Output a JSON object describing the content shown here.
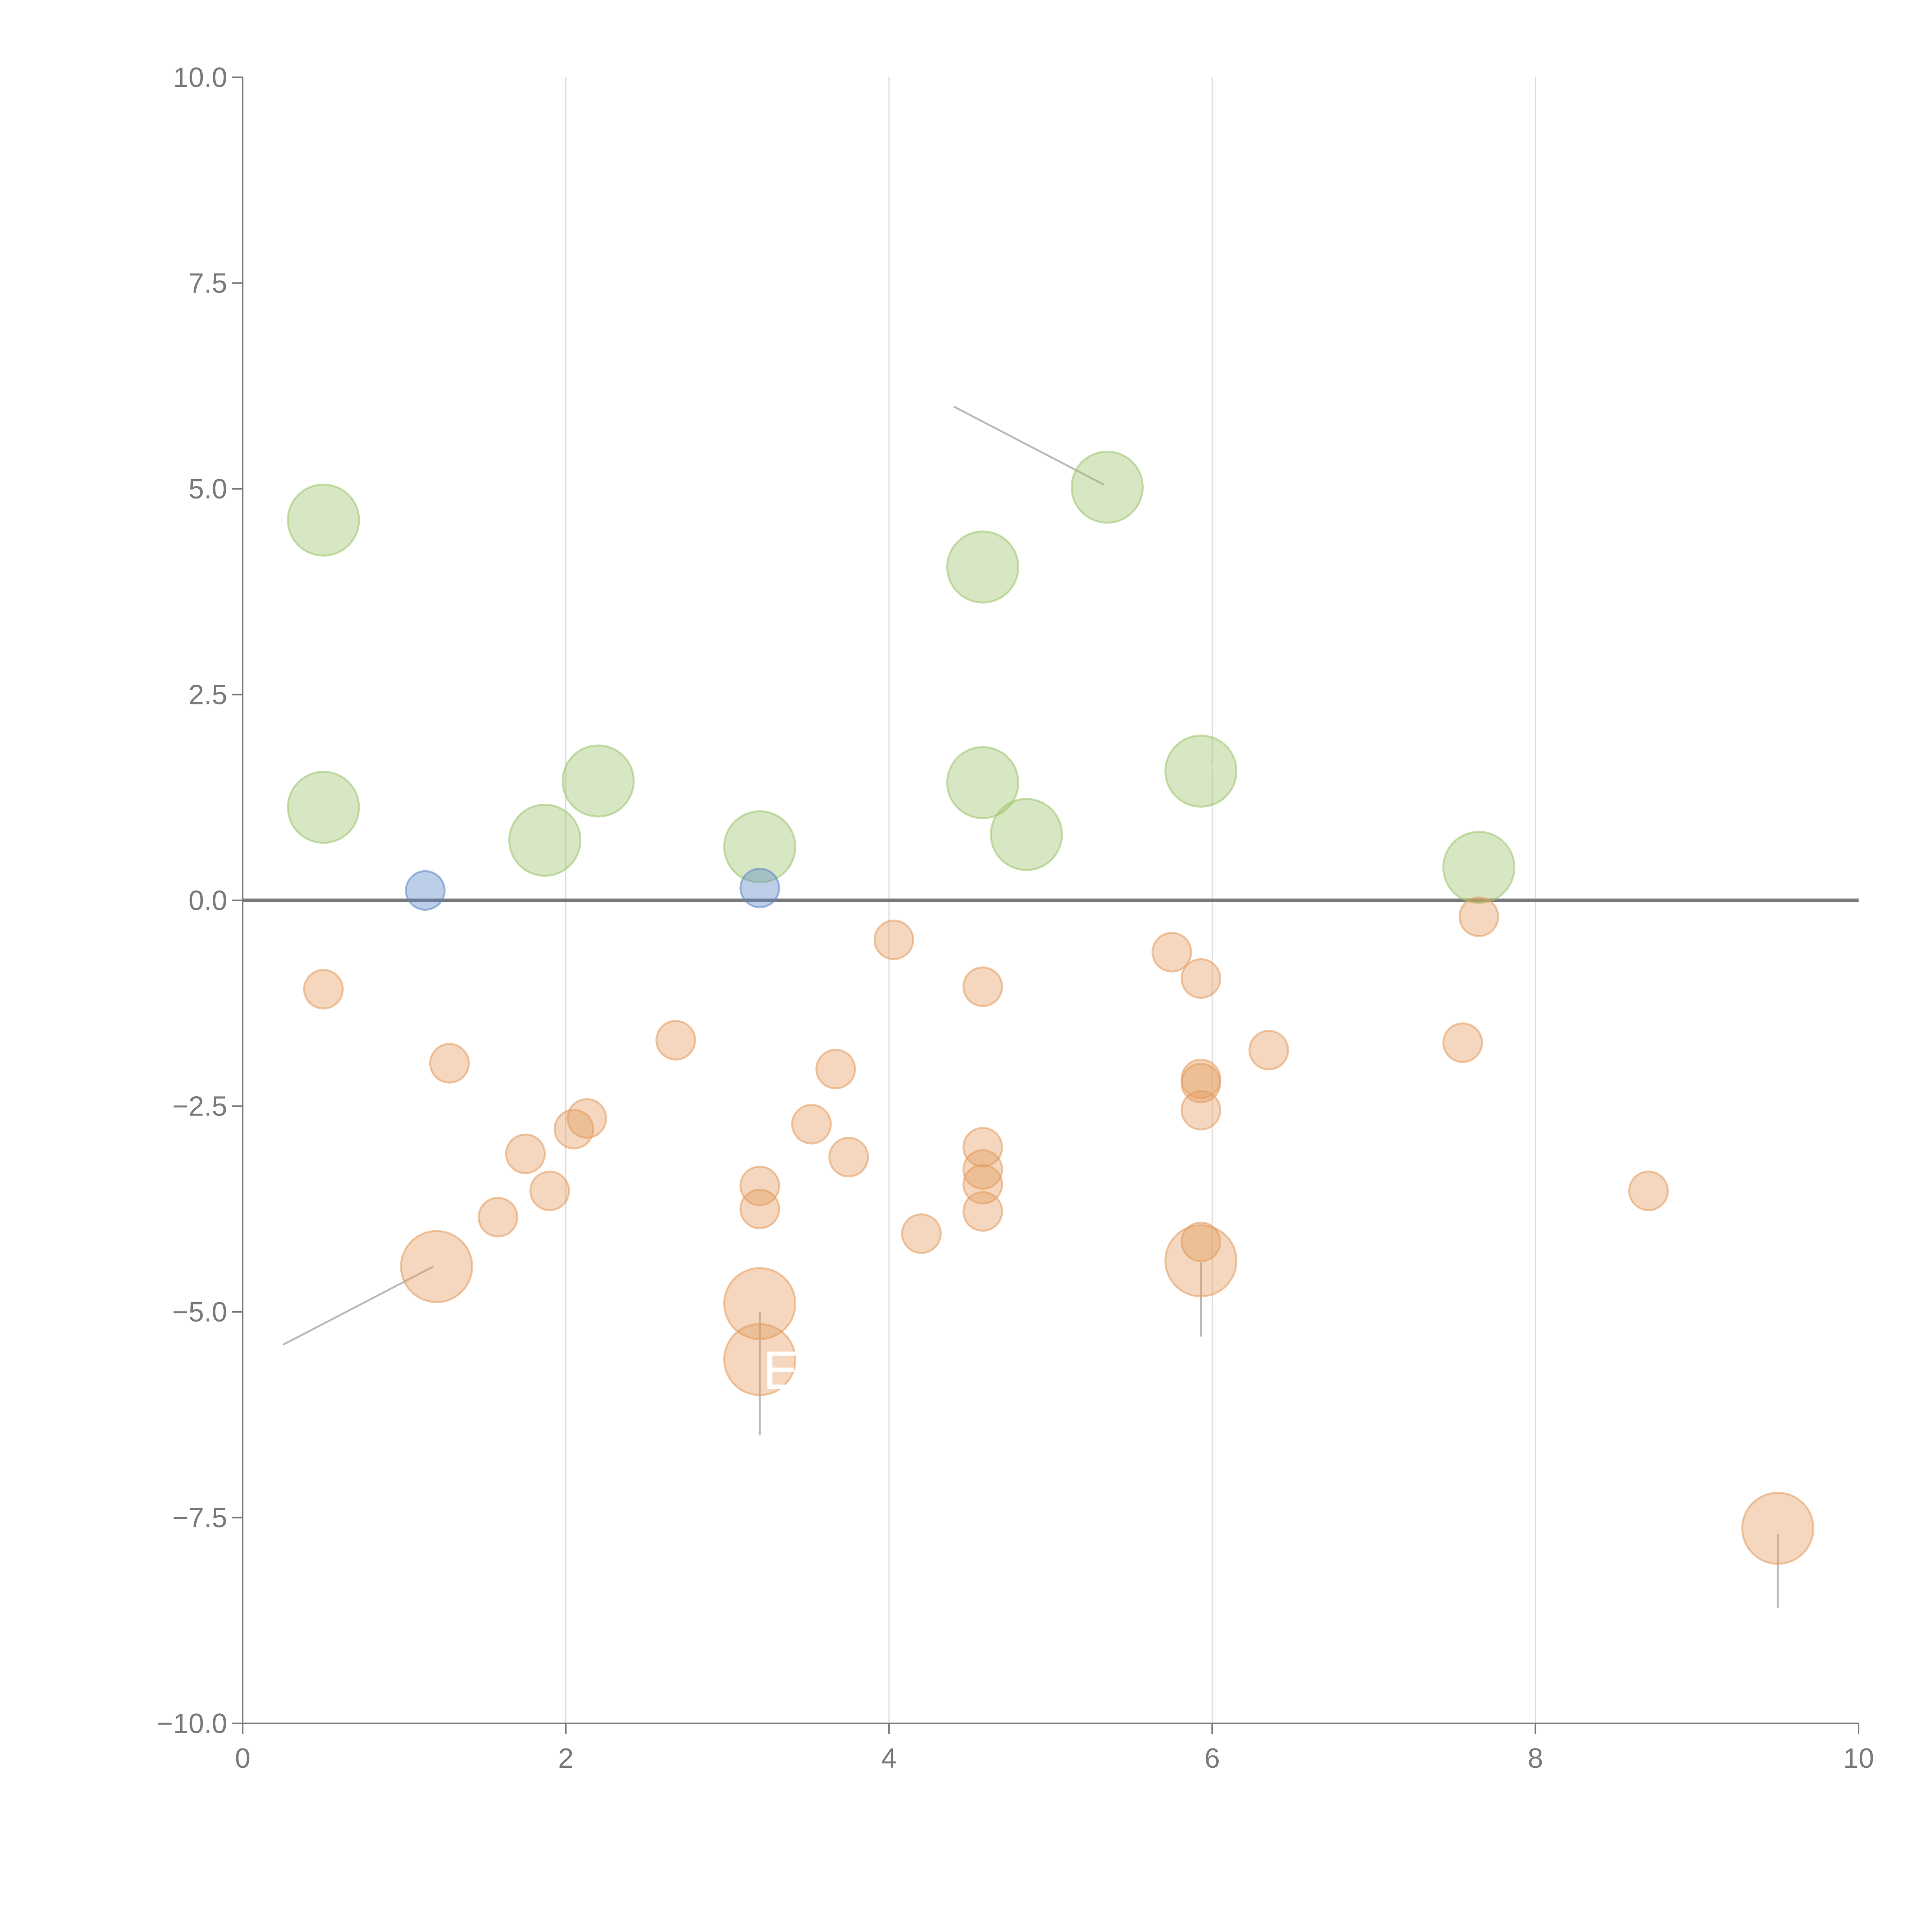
{
  "chart_data": {
    "type": "scatter",
    "title": "",
    "xlabel": "",
    "ylabel": "",
    "xlim": [
      0,
      10
    ],
    "ylim": [
      -10,
      10
    ],
    "x_ticks": [
      "0",
      "2",
      "4",
      "6",
      "8",
      "10"
    ],
    "y_ticks": [
      "10.0",
      "7.5",
      "5.0",
      "2.5",
      "0.0",
      "−2.5",
      "−5.0",
      "−7.5",
      "−10.0"
    ],
    "x_tick_values": [
      0,
      2,
      4,
      6,
      8,
      10
    ],
    "y_tick_values": [
      10,
      7.5,
      5,
      2.5,
      0,
      -2.5,
      -5,
      -7.5,
      -10
    ],
    "grid": "vertical lines at x ticks",
    "zero_line": 0,
    "colors": {
      "positive": "#9bc46a",
      "near_zero": "#5b87c6",
      "negative": "#e39a5c",
      "axis": "#7a7a7a",
      "grid": "#dddddd",
      "leader": "#bbbbbb"
    },
    "series": [
      {
        "name": "positive",
        "color": "#9bc46a",
        "points": [
          {
            "x": 0.5,
            "y": 4.62,
            "size": "large"
          },
          {
            "x": 0.5,
            "y": 1.13,
            "size": "large"
          },
          {
            "x": 1.87,
            "y": 0.73,
            "size": "large"
          },
          {
            "x": 2.2,
            "y": 1.45,
            "size": "large"
          },
          {
            "x": 3.2,
            "y": 0.65,
            "size": "large"
          },
          {
            "x": 4.58,
            "y": 4.05,
            "size": "large"
          },
          {
            "x": 4.58,
            "y": 1.43,
            "size": "large"
          },
          {
            "x": 4.85,
            "y": 0.8,
            "size": "large"
          },
          {
            "x": 5.35,
            "y": 5.02,
            "size": "large"
          },
          {
            "x": 5.93,
            "y": 1.57,
            "size": "large"
          },
          {
            "x": 7.65,
            "y": 0.4,
            "size": "large"
          }
        ]
      },
      {
        "name": "near_zero",
        "color": "#5b87c6",
        "points": [
          {
            "x": 1.13,
            "y": 0.12,
            "size": "small"
          },
          {
            "x": 3.2,
            "y": 0.15,
            "size": "small"
          }
        ]
      },
      {
        "name": "negative",
        "color": "#e39a5c",
        "points": [
          {
            "x": 0.5,
            "y": -1.08,
            "size": "small"
          },
          {
            "x": 1.28,
            "y": -1.98,
            "size": "small"
          },
          {
            "x": 1.2,
            "y": -4.45,
            "size": "large"
          },
          {
            "x": 1.58,
            "y": -3.85,
            "size": "small"
          },
          {
            "x": 1.75,
            "y": -3.08,
            "size": "small"
          },
          {
            "x": 1.9,
            "y": -3.53,
            "size": "small"
          },
          {
            "x": 2.05,
            "y": -2.78,
            "size": "small"
          },
          {
            "x": 2.13,
            "y": -2.65,
            "size": "small"
          },
          {
            "x": 2.68,
            "y": -1.7,
            "size": "small"
          },
          {
            "x": 3.2,
            "y": -3.47,
            "size": "small"
          },
          {
            "x": 3.2,
            "y": -3.75,
            "size": "small"
          },
          {
            "x": 3.2,
            "y": -4.9,
            "size": "large"
          },
          {
            "x": 3.2,
            "y": -5.58,
            "size": "large"
          },
          {
            "x": 3.52,
            "y": -2.72,
            "size": "small"
          },
          {
            "x": 3.67,
            "y": -2.05,
            "size": "small"
          },
          {
            "x": 3.75,
            "y": -3.12,
            "size": "small"
          },
          {
            "x": 4.03,
            "y": -0.48,
            "size": "small"
          },
          {
            "x": 4.2,
            "y": -4.05,
            "size": "small"
          },
          {
            "x": 4.58,
            "y": -1.05,
            "size": "small"
          },
          {
            "x": 4.58,
            "y": -3.0,
            "size": "small"
          },
          {
            "x": 4.58,
            "y": -3.27,
            "size": "small"
          },
          {
            "x": 4.58,
            "y": -3.45,
            "size": "small"
          },
          {
            "x": 4.58,
            "y": -3.78,
            "size": "small"
          },
          {
            "x": 5.75,
            "y": -0.63,
            "size": "small"
          },
          {
            "x": 5.93,
            "y": -0.95,
            "size": "small"
          },
          {
            "x": 5.93,
            "y": -2.17,
            "size": "small"
          },
          {
            "x": 5.93,
            "y": -2.22,
            "size": "small"
          },
          {
            "x": 5.93,
            "y": -2.55,
            "size": "small"
          },
          {
            "x": 5.93,
            "y": -4.15,
            "size": "small"
          },
          {
            "x": 5.93,
            "y": -4.38,
            "size": "large"
          },
          {
            "x": 6.35,
            "y": -1.82,
            "size": "small"
          },
          {
            "x": 7.55,
            "y": -1.73,
            "size": "small"
          },
          {
            "x": 7.65,
            "y": -0.2,
            "size": "small"
          },
          {
            "x": 8.7,
            "y": -3.53,
            "size": "small"
          },
          {
            "x": 9.5,
            "y": -7.63,
            "size": "large"
          }
        ]
      }
    ],
    "annotations": [
      {
        "from": [
          5.33,
          5.05
        ],
        "to": [
          4.4,
          6.0
        ],
        "color": "#bbbbbb"
      },
      {
        "from": [
          1.18,
          -4.45
        ],
        "to": [
          0.25,
          -5.4
        ],
        "color": "#bbbbbb"
      },
      {
        "from": [
          3.2,
          -5.0
        ],
        "to": [
          3.2,
          -6.5
        ],
        "color": "#bbbbbb"
      },
      {
        "from": [
          5.93,
          -4.4
        ],
        "to": [
          5.93,
          -5.3
        ],
        "color": "#bbbbbb"
      },
      {
        "from": [
          9.5,
          -7.7
        ],
        "to": [
          9.5,
          -8.6
        ],
        "color": "#bbbbbb"
      },
      {
        "from": [
          4.62,
          4.05
        ],
        "to": [
          4.8,
          4.08
        ],
        "color": "#ffffff"
      },
      {
        "from": [
          4.62,
          1.48
        ],
        "to": [
          4.75,
          1.75
        ],
        "color": "#ffffff"
      },
      {
        "from": [
          4.87,
          0.8
        ],
        "to": [
          5.05,
          0.78
        ],
        "color": "#ffffff"
      },
      {
        "from": [
          5.97,
          1.58
        ],
        "to": [
          6.13,
          1.75
        ],
        "color": "#ffffff"
      },
      {
        "from": [
          0.52,
          1.2
        ],
        "to": [
          0.57,
          1.5
        ],
        "color": "#ffffff"
      },
      {
        "from": [
          1.87,
          0.68
        ],
        "to": [
          1.9,
          0.45
        ],
        "color": "#ffffff"
      },
      {
        "from": [
          2.22,
          1.5
        ],
        "to": [
          2.35,
          1.8
        ],
        "color": "#ffffff"
      },
      {
        "from": [
          3.25,
          0.63
        ],
        "to": [
          3.45,
          0.6
        ],
        "color": "#ffffff"
      }
    ],
    "labels": [
      {
        "text": "E",
        "x": 3.22,
        "y": -5.7,
        "color": "#ffffff"
      }
    ]
  }
}
